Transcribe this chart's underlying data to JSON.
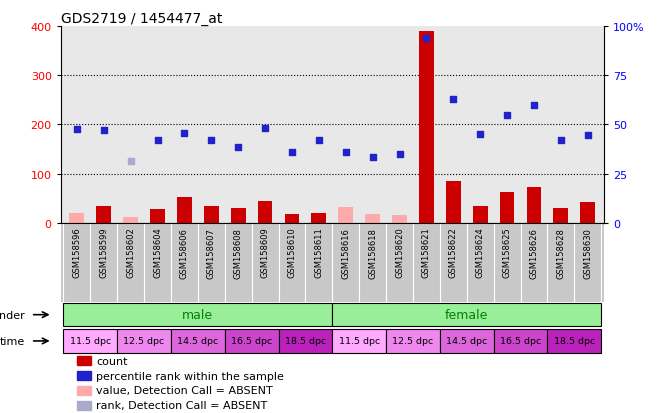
{
  "title": "GDS2719 / 1454477_at",
  "samples": [
    "GSM158596",
    "GSM158599",
    "GSM158602",
    "GSM158604",
    "GSM158606",
    "GSM158607",
    "GSM158608",
    "GSM158609",
    "GSM158610",
    "GSM158611",
    "GSM158616",
    "GSM158618",
    "GSM158620",
    "GSM158621",
    "GSM158622",
    "GSM158624",
    "GSM158625",
    "GSM158626",
    "GSM158628",
    "GSM158630"
  ],
  "count_values": [
    20,
    35,
    12,
    28,
    52,
    35,
    30,
    45,
    18,
    20,
    32,
    18,
    15,
    390,
    85,
    35,
    62,
    72,
    30,
    42
  ],
  "count_absent": [
    true,
    false,
    true,
    false,
    false,
    false,
    false,
    false,
    false,
    false,
    true,
    true,
    true,
    false,
    false,
    false,
    false,
    false,
    false,
    false
  ],
  "rank_values": [
    190,
    188,
    125,
    168,
    182,
    168,
    155,
    193,
    143,
    168,
    143,
    133,
    140,
    375,
    252,
    180,
    220,
    240,
    168,
    178
  ],
  "rank_absent": [
    false,
    false,
    true,
    false,
    false,
    false,
    false,
    false,
    false,
    false,
    false,
    false,
    false,
    false,
    false,
    false,
    false,
    false,
    false,
    false
  ],
  "time_display": [
    "11.5 dpc",
    "12.5 dpc",
    "14.5 dpc",
    "16.5 dpc",
    "18.5 dpc",
    "11.5 dpc",
    "12.5 dpc",
    "14.5 dpc",
    "16.5 dpc",
    "18.5 dpc"
  ],
  "count_color": "#cc0000",
  "count_absent_color": "#ffaaaa",
  "rank_color": "#2222cc",
  "rank_absent_color": "#aaaacc",
  "male_color": "#99ee99",
  "female_color": "#99ee99",
  "time_colors": [
    "#ee88ee",
    "#dd77dd",
    "#cc66cc",
    "#bb55bb",
    "#aa44aa",
    "#ee88ee",
    "#dd77dd",
    "#cc66cc",
    "#bb55bb",
    "#aa44aa"
  ],
  "ylim_left": [
    0,
    400
  ],
  "yticks_left": [
    0,
    100,
    200,
    300,
    400
  ],
  "yticks_right_labels": [
    "0",
    "25",
    "50",
    "75",
    "100%"
  ],
  "yticks_right_vals": [
    0,
    25,
    50,
    75,
    100
  ],
  "label_bg": "#c8c8c8",
  "plot_bg": "#e8e8e8"
}
